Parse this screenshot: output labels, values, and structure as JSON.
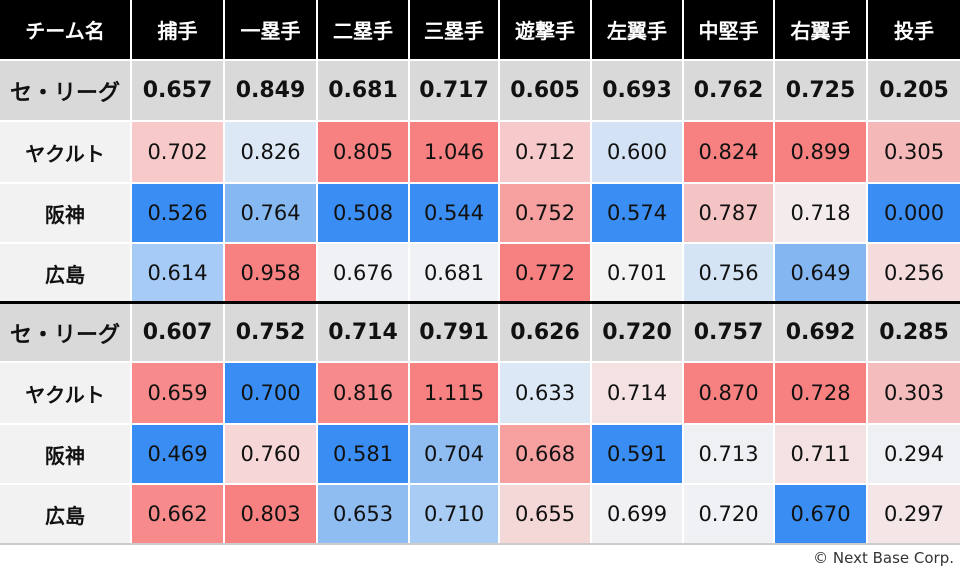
{
  "chart_data": {
    "type": "heatmap",
    "columns": [
      "チーム名",
      "捕手",
      "一塁手",
      "二塁手",
      "三塁手",
      "遊撃手",
      "左翼手",
      "中堅手",
      "右翼手",
      "投手"
    ],
    "blocks": [
      {
        "league": {
          "label": "セ・リーグ",
          "values": [
            "0.657",
            "0.849",
            "0.681",
            "0.717",
            "0.605",
            "0.693",
            "0.762",
            "0.725",
            "0.205"
          ]
        },
        "teams": [
          {
            "label": "ヤクルト",
            "values": [
              "0.702",
              "0.826",
              "0.805",
              "1.046",
              "0.712",
              "0.600",
              "0.824",
              "0.899",
              "0.305"
            ]
          },
          {
            "label": "阪神",
            "values": [
              "0.526",
              "0.764",
              "0.508",
              "0.544",
              "0.752",
              "0.574",
              "0.787",
              "0.718",
              "0.000"
            ]
          },
          {
            "label": "広島",
            "values": [
              "0.614",
              "0.958",
              "0.676",
              "0.681",
              "0.772",
              "0.701",
              "0.756",
              "0.649",
              "0.256"
            ]
          }
        ]
      },
      {
        "league": {
          "label": "セ・リーグ",
          "values": [
            "0.607",
            "0.752",
            "0.714",
            "0.791",
            "0.626",
            "0.720",
            "0.757",
            "0.692",
            "0.285"
          ]
        },
        "teams": [
          {
            "label": "ヤクルト",
            "values": [
              "0.659",
              "0.700",
              "0.816",
              "1.115",
              "0.633",
              "0.714",
              "0.870",
              "0.728",
              "0.303"
            ]
          },
          {
            "label": "阪神",
            "values": [
              "0.469",
              "0.760",
              "0.581",
              "0.704",
              "0.668",
              "0.591",
              "0.713",
              "0.711",
              "0.294"
            ]
          },
          {
            "label": "広島",
            "values": [
              "0.662",
              "0.803",
              "0.653",
              "0.710",
              "0.655",
              "0.699",
              "0.720",
              "0.670",
              "0.297"
            ]
          }
        ]
      }
    ],
    "cell_colors": [
      [
        [
          "#f7c9c9",
          "#dce8f6",
          "#f78080",
          "#f78080",
          "#f6caca",
          "#d3e3f5",
          "#f78080",
          "#f78080",
          "#f4b8b8"
        ],
        [
          "#3a8ef3",
          "#86b8f2",
          "#3a8ef3",
          "#3a8ef3",
          "#f7a0a0",
          "#3a8ef3",
          "#f4c4c4",
          "#f4ecec",
          "#3a8ef3"
        ],
        [
          "#a6cbf6",
          "#f78080",
          "#eff1f4",
          "#eff1f4",
          "#f78080",
          "#f3f3f3",
          "#d4e4f5",
          "#84b7f2",
          "#f4dcdc"
        ]
      ],
      [
        [
          "#f78a8a",
          "#3a8ef3",
          "#f78a8a",
          "#f78080",
          "#dce8f6",
          "#f4e2e2",
          "#f78080",
          "#f78080",
          "#f4bcbc"
        ],
        [
          "#3a8ef3",
          "#f6d6d6",
          "#3a8ef3",
          "#8fbdf2",
          "#f7a0a0",
          "#3a8ef3",
          "#eef0f4",
          "#f4e2e2",
          "#eef0f4"
        ],
        [
          "#f78a8a",
          "#f78080",
          "#8fbdf2",
          "#a9ccf5",
          "#f4d8d8",
          "#f1f1f3",
          "#eff1f4",
          "#3a8ef3",
          "#f4e6e6"
        ]
      ]
    ],
    "header_bg": "#000000",
    "league_bg": "#d9d9d9",
    "label_bg": "#f2f2f2"
  },
  "footer": {
    "credit": "© Next Base Corp."
  }
}
